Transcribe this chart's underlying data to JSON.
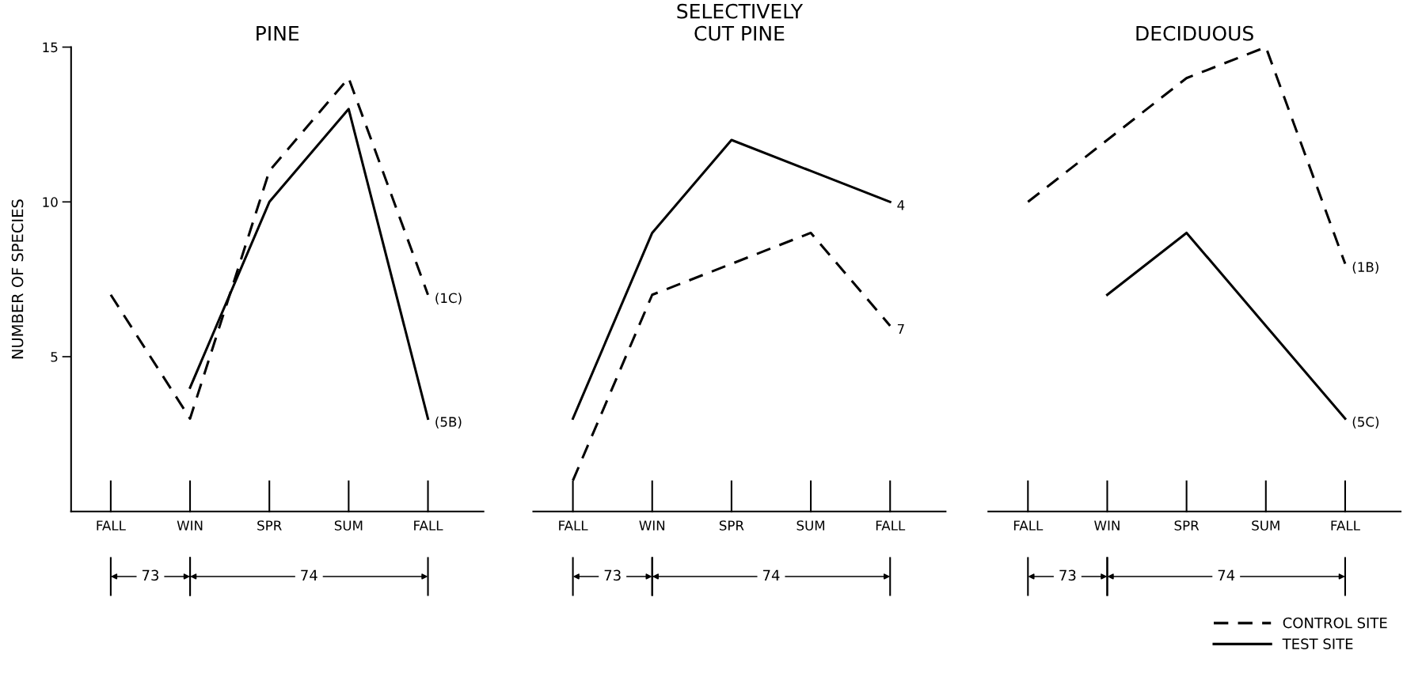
{
  "chart_data": [
    {
      "type": "line",
      "title": "PINE",
      "ylabel": "NUMBER OF SPECIES",
      "categories": [
        "FALL",
        "WIN",
        "SPR",
        "SUM",
        "FALL"
      ],
      "ylim": [
        0,
        15
      ],
      "yticks": [
        5,
        10,
        15
      ],
      "grid": false,
      "marker": "none",
      "legend": "bottom right",
      "series": [
        {
          "name": "CONTROL SITE",
          "color": "#000000",
          "line_style": "dashed",
          "values": [
            7,
            3,
            11,
            14,
            7
          ]
        },
        {
          "name": "TEST SITE",
          "color": "#000000",
          "line_style": "solid",
          "values": [
            null,
            4,
            10,
            13,
            3
          ]
        }
      ],
      "annotations": [
        "(1C)",
        "(5B)",
        "73",
        "74"
      ]
    },
    {
      "type": "line",
      "title": "SELECTIVELY\nCUT PINE",
      "categories": [
        "FALL",
        "WIN",
        "SPR",
        "SUM",
        "FALL"
      ],
      "ylim": [
        0,
        15
      ],
      "tick_labels": "x",
      "grid": false,
      "marker": "none",
      "series": [
        {
          "color": "#000000",
          "line_style": "dashed",
          "values": [
            1,
            7,
            8,
            9,
            6
          ]
        },
        {
          "color": "#000000",
          "line_style": "solid",
          "values": [
            3,
            9,
            12,
            11,
            10
          ]
        }
      ],
      "annotations": [
        "7",
        "4",
        "73",
        "74"
      ]
    },
    {
      "type": "line",
      "title": "DECIDUOUS",
      "categories": [
        "FALL",
        "WIN",
        "SPR",
        "SUM",
        "FALL"
      ],
      "ylim": [
        0,
        15
      ],
      "tick_labels": "x",
      "grid": false,
      "marker": "none",
      "series": [
        {
          "color": "#000000",
          "line_style": "dashed",
          "values": [
            10,
            12,
            14,
            15,
            8
          ]
        },
        {
          "color": "#000000",
          "line_style": "solid",
          "values": [
            null,
            7,
            9,
            6,
            3
          ]
        }
      ],
      "annotations": [
        "(1B)",
        "(5C)",
        "73",
        "74"
      ]
    }
  ]
}
